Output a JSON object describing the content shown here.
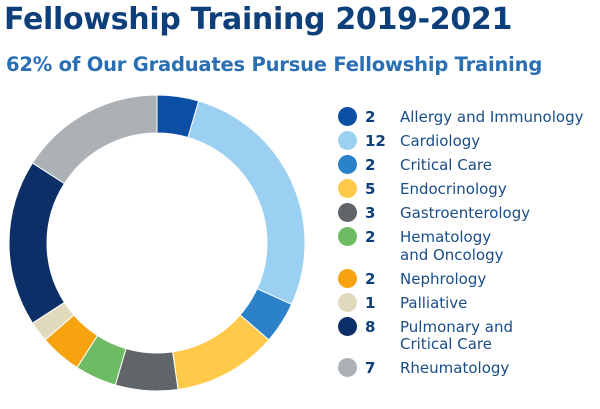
{
  "chart_data": {
    "type": "pie",
    "title": "Fellowship Training 2019-2021",
    "subtitle": "62% of Our Graduates Pursue Fellowship Training",
    "slices": [
      {
        "label": "Allergy and Immunology",
        "label_lines": [
          "Allergy and Immunology"
        ],
        "value": 2,
        "color": "#0a4fa3"
      },
      {
        "label": "Cardiology",
        "label_lines": [
          "Cardiology"
        ],
        "value": 12,
        "color": "#9bd0f2"
      },
      {
        "label": "Critical Care",
        "label_lines": [
          "Critical Care"
        ],
        "value": 2,
        "color": "#2b82c8"
      },
      {
        "label": "Endocrinology",
        "label_lines": [
          "Endocrinology"
        ],
        "value": 5,
        "color": "#ffc94a"
      },
      {
        "label": "Gastroenterology",
        "label_lines": [
          "Gastroenterology"
        ],
        "value": 3,
        "color": "#5f6569"
      },
      {
        "label": "Hematology and Oncology",
        "label_lines": [
          "Hematology",
          "and Oncology"
        ],
        "value": 2,
        "color": "#6dbb63"
      },
      {
        "label": "Nephrology",
        "label_lines": [
          "Nephrology"
        ],
        "value": 2,
        "color": "#f7a30f"
      },
      {
        "label": "Palliative",
        "label_lines": [
          "Palliative"
        ],
        "value": 1,
        "color": "#e1d9bb"
      },
      {
        "label": "Pulmonary and Critical Care",
        "label_lines": [
          "Pulmonary and",
          "Critical Care"
        ],
        "value": 8,
        "color": "#0b2f66"
      },
      {
        "label": "Rheumatology",
        "label_lines": [
          "Rheumatology"
        ],
        "value": 7,
        "color": "#acb1b5"
      }
    ],
    "legend_position": "right"
  }
}
